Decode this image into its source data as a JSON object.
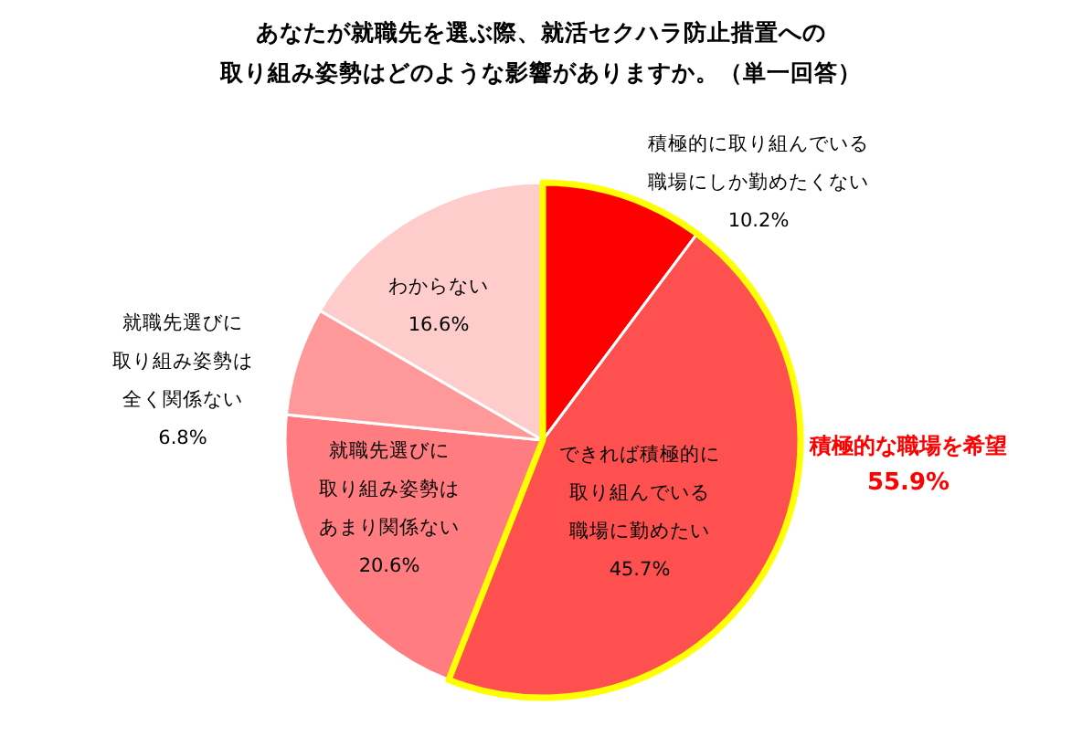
{
  "chart_data": {
    "type": "pie",
    "title": "あなたが就職先を選ぶ際、就活セクハラ防止措置への取り組み姿勢はどのような影響がありますか。（単一回答）",
    "categories": [
      "積極的に取り組んでいる職場にしか勤めたくない",
      "できれば積極的に取り組んでいる職場に勤めたい",
      "就職先選びに取り組み姿勢はあまり関係ない",
      "就職先選びに取り組み姿勢は全く関係ない",
      "わからない"
    ],
    "values": [
      10.2,
      45.7,
      20.6,
      6.8,
      16.6
    ],
    "value_labels": [
      "10.2%",
      "45.7%",
      "20.6%",
      "6.8%",
      "16.6%"
    ],
    "colors": [
      "#ff0000",
      "#ff5050",
      "#ff7c80",
      "#ff9999",
      "#ffcccc"
    ],
    "annotations": [
      "積極的な職場を希望\n55.9%"
    ],
    "legend": false
  }
}
